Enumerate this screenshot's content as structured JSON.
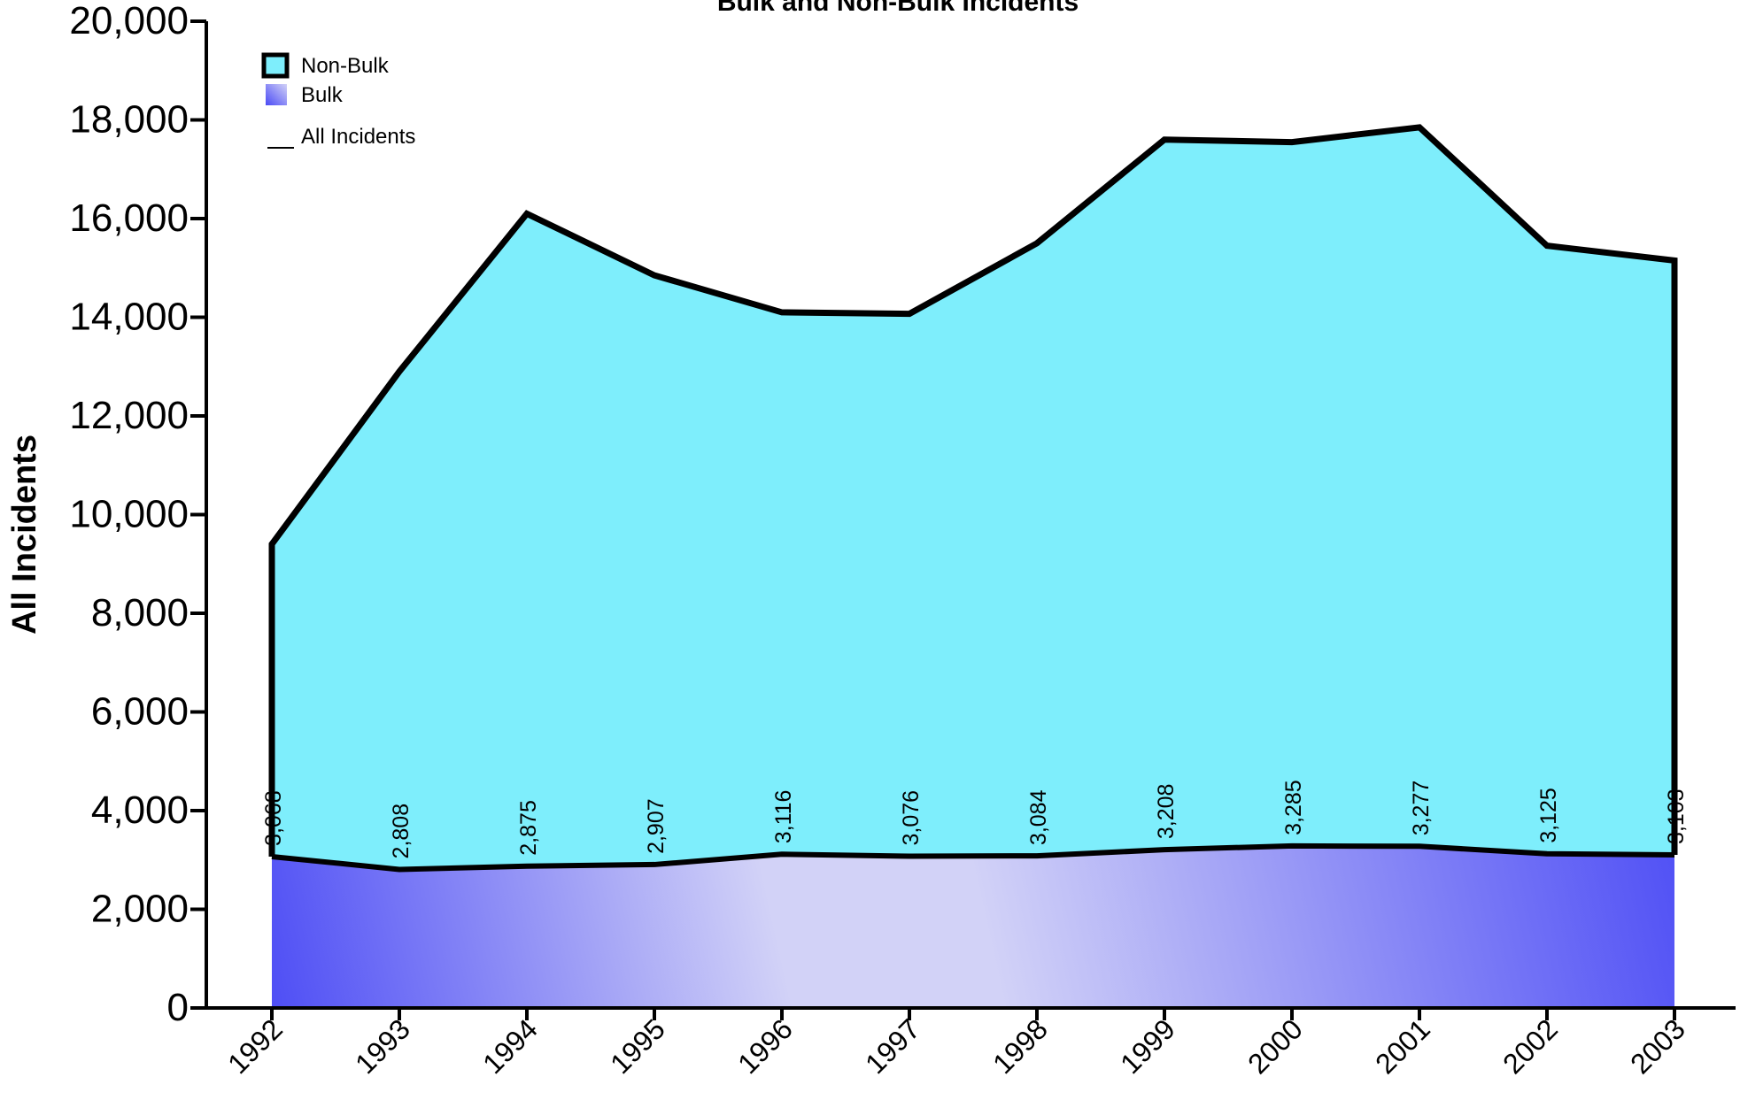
{
  "chart_data": {
    "type": "area",
    "title": "Bulk and Non-Bulk Incidents",
    "xlabel": "",
    "ylabel": "All Incidents",
    "ylim": [
      0,
      20000
    ],
    "y_ticks": [
      0,
      2000,
      4000,
      6000,
      8000,
      10000,
      12000,
      14000,
      16000,
      18000,
      20000
    ],
    "y_tick_labels": [
      "0",
      "2,000",
      "4,000",
      "6,000",
      "8,000",
      "10,000",
      "12,000",
      "14,000",
      "16,000",
      "18,000",
      "20,000"
    ],
    "categories": [
      "1992",
      "1993",
      "1994",
      "1995",
      "1996",
      "1997",
      "1998",
      "1999",
      "2000",
      "2001",
      "2002",
      "2003"
    ],
    "stacked": true,
    "grid": false,
    "legend_position": "top-left",
    "series": [
      {
        "name": "Bulk",
        "values": [
          3068,
          2808,
          2875,
          2907,
          3116,
          3076,
          3084,
          3208,
          3285,
          3277,
          3125,
          3103
        ],
        "data_labels": [
          "3,068",
          "2,808",
          "2,875",
          "2,907",
          "3,116",
          "3,076",
          "3,084",
          "3,208",
          "3,285",
          "3,277",
          "3,125",
          "3,103"
        ],
        "color": "#4a4af5",
        "highlight_color": "#d2d2f7"
      },
      {
        "name": "Non-Bulk",
        "values": [
          6332,
          10092,
          13225,
          11943,
          10984,
          10994,
          12416,
          14392,
          14265,
          14573,
          12325,
          12047
        ],
        "color": "#7eeefc"
      },
      {
        "name": "All Incidents",
        "values": [
          9400,
          12900,
          16100,
          14850,
          14100,
          14070,
          15500,
          17600,
          17550,
          17850,
          15450,
          15150
        ],
        "color": "#000000"
      }
    ],
    "legend": [
      {
        "name": "Non-Bulk",
        "swatch": "box"
      },
      {
        "name": "Bulk",
        "swatch": "gradient"
      },
      {
        "name": "All Incidents",
        "swatch": "line"
      }
    ]
  }
}
